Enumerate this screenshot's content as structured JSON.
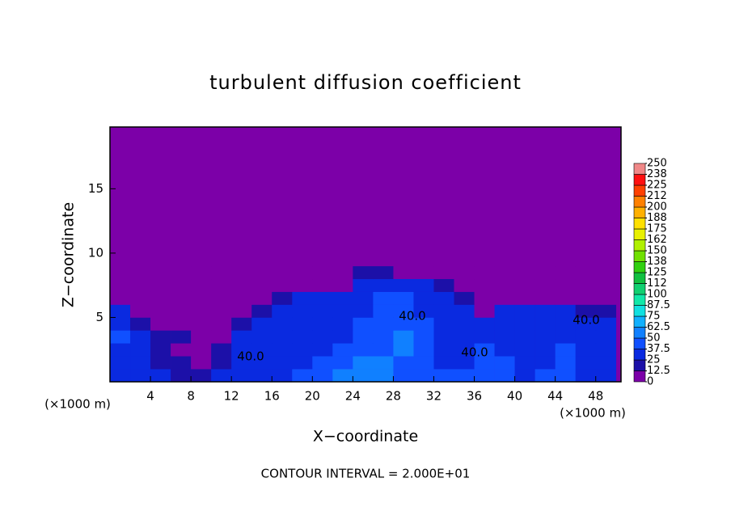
{
  "chart_data": {
    "type": "contour",
    "title": "turbulent diffusion coefficient",
    "xlabel": "X−coordinate",
    "ylabel": "Z−coordinate",
    "x_unit_left": "(×1000 m)",
    "x_unit_right": "(×1000 m)",
    "contour_interval_label": "CONTOUR INTERVAL = 2.000E+01",
    "contour_labels": [
      "40.0",
      "40.0",
      "40.0",
      "40.0"
    ],
    "xlim": [
      0,
      50.5
    ],
    "ylim": [
      0,
      19.8
    ],
    "xticks": [
      4,
      8,
      12,
      16,
      20,
      24,
      28,
      32,
      36,
      40,
      44,
      48
    ],
    "yticks": [
      5,
      10,
      15
    ],
    "background": "#7c00a8",
    "x": [
      1,
      3,
      5,
      7,
      9,
      11,
      13,
      15,
      17,
      19,
      21,
      23,
      25,
      27,
      29,
      31,
      33,
      35,
      37,
      39,
      41,
      43,
      45,
      47,
      49
    ],
    "y": [
      0.5,
      1.5,
      2.5,
      3.5,
      4.5,
      5.5,
      6.5,
      7.5,
      8.5,
      9.5
    ],
    "z": [
      [
        35,
        30,
        30,
        20,
        20,
        30,
        35,
        35,
        35,
        40,
        45,
        50,
        55,
        55,
        45,
        40,
        40,
        40,
        40,
        40,
        35,
        40,
        40,
        35,
        35
      ],
      [
        30,
        25,
        20,
        15,
        10,
        20,
        30,
        35,
        35,
        35,
        40,
        45,
        50,
        50,
        45,
        40,
        35,
        35,
        40,
        40,
        35,
        35,
        40,
        35,
        35
      ],
      [
        35,
        30,
        15,
        10,
        5,
        15,
        30,
        30,
        35,
        35,
        35,
        40,
        45,
        45,
        50,
        40,
        30,
        35,
        40,
        35,
        30,
        35,
        40,
        35,
        35
      ],
      [
        40,
        30,
        20,
        15,
        5,
        10,
        30,
        30,
        30,
        35,
        35,
        35,
        45,
        45,
        50,
        40,
        30,
        30,
        35,
        35,
        30,
        35,
        35,
        30,
        35
      ],
      [
        35,
        20,
        10,
        10,
        5,
        10,
        20,
        25,
        30,
        30,
        30,
        35,
        40,
        45,
        45,
        45,
        30,
        30,
        30,
        30,
        35,
        35,
        35,
        35,
        35
      ],
      [
        25,
        10,
        5,
        5,
        5,
        5,
        10,
        20,
        30,
        30,
        30,
        30,
        35,
        40,
        45,
        35,
        30,
        30,
        5,
        25,
        30,
        30,
        25,
        20,
        20
      ],
      [
        5,
        5,
        5,
        5,
        5,
        5,
        5,
        5,
        20,
        25,
        25,
        25,
        35,
        40,
        40,
        35,
        30,
        20,
        5,
        5,
        10,
        10,
        5,
        5,
        5
      ],
      [
        0,
        0,
        0,
        0,
        0,
        0,
        0,
        0,
        0,
        5,
        5,
        5,
        25,
        30,
        30,
        25,
        15,
        5,
        0,
        0,
        0,
        0,
        0,
        0,
        0
      ],
      [
        0,
        0,
        0,
        0,
        0,
        0,
        0,
        0,
        0,
        0,
        0,
        10,
        15,
        20,
        10,
        0,
        0,
        0,
        0,
        0,
        0,
        0,
        0,
        0,
        0
      ],
      [
        0,
        0,
        0,
        0,
        0,
        0,
        0,
        0,
        0,
        0,
        0,
        0,
        0,
        0,
        0,
        0,
        0,
        0,
        0,
        0,
        0,
        0,
        0,
        0,
        0
      ]
    ],
    "colorbar_ticks": [
      0,
      12.5,
      25,
      37.5,
      50,
      62.5,
      75,
      87.5,
      100,
      {
        "value": 112.5,
        "label": "112"
      },
      125,
      {
        "value": 137.5,
        "label": "138"
      },
      150,
      {
        "value": 162.5,
        "label": "162"
      },
      175,
      {
        "value": 187.5,
        "label": "188"
      },
      200,
      {
        "value": 212.5,
        "label": "212"
      },
      225,
      {
        "value": 237.5,
        "label": "238"
      },
      250
    ],
    "colorbar_colors": [
      "#7c00a8",
      "#1c10a8",
      "#0a2ae0",
      "#1050ff",
      "#1080ff",
      "#10b0ff",
      "#10e0e0",
      "#10e8a8",
      "#10d070",
      "#10c040",
      "#30d010",
      "#70e000",
      "#b0f000",
      "#e8f000",
      "#ffe000",
      "#ffb000",
      "#ff8000",
      "#ff4000",
      "#ff1010",
      "#f08888"
    ]
  }
}
